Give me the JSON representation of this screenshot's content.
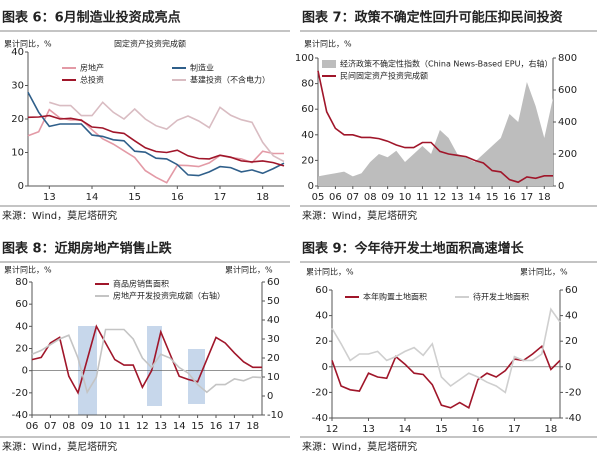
{
  "chart_data": [
    {
      "type": "line",
      "title": "图表 6：6月制造业投资成亮点",
      "subtitle": "固定资产投资完成额",
      "ylabel": "累计同比，%",
      "source": "来源：Wind，莫尼塔研究",
      "categories": [
        null,
        null,
        "13",
        null,
        null,
        null,
        "14",
        null,
        null,
        null,
        "15",
        null,
        null,
        null,
        "16",
        null,
        null,
        null,
        "17",
        null,
        null,
        null,
        "18",
        null,
        null
      ],
      "ylim": [
        0,
        40
      ],
      "yticks": [
        0,
        10,
        20,
        30,
        40
      ],
      "series": [
        {
          "name": "房地产",
          "color": "#e39aa6",
          "values": [
            15,
            16.2,
            22.8,
            20.3,
            19.7,
            19.8,
            16.8,
            14.1,
            12.5,
            10.5,
            8.5,
            4.6,
            2.6,
            1,
            6.2,
            6.1,
            5.8,
            6.9,
            9.1,
            8.5,
            8.1,
            7,
            10.4,
            9.7,
            9.7
          ]
        },
        {
          "name": "制造业",
          "color": "#2f5f8a",
          "values": [
            28,
            22,
            17.8,
            18.5,
            18.5,
            18.5,
            15.2,
            14.8,
            13.8,
            13.5,
            10.4,
            10.1,
            8.3,
            8.1,
            6.4,
            3.3,
            3.1,
            4.2,
            5.8,
            5.5,
            4.2,
            4.8,
            3.8,
            5.2,
            6.8
          ]
        },
        {
          "name": "总投资",
          "color": "#a0162a",
          "values": [
            20.5,
            20.6,
            21,
            20,
            20.2,
            19.6,
            17.6,
            17.3,
            16.1,
            15.7,
            13.5,
            11.4,
            10.3,
            10,
            10.7,
            9,
            8.2,
            8.1,
            9.2,
            8.6,
            7.5,
            7.2,
            7.5,
            7.0,
            6.0
          ]
        },
        {
          "name": "基建投资（不含电力）",
          "color": "#d9bcc2",
          "values": [
            null,
            null,
            25,
            24,
            24,
            21,
            21,
            25,
            22,
            20,
            23,
            20,
            18,
            17,
            19.6,
            20.9,
            19.4,
            17.4,
            23.5,
            21.1,
            19.8,
            19,
            13,
            9,
            7.3
          ]
        }
      ]
    },
    {
      "type": "line",
      "title": "图表 7：政策不确定性回升可能压抑民间投资",
      "ylabel": "累计同比，%",
      "source": "来源：Wind，莫尼塔研究",
      "categories": [
        "05",
        null,
        "06",
        null,
        "07",
        null,
        "08",
        null,
        "09",
        null,
        "10",
        null,
        "11",
        null,
        "12",
        null,
        "13",
        null,
        "14",
        null,
        "15",
        null,
        "16",
        null,
        "17",
        null,
        "18",
        null
      ],
      "ylim": [
        0,
        100
      ],
      "yticks": [
        0,
        20,
        40,
        60,
        80,
        100
      ],
      "y2lim": [
        0,
        800
      ],
      "y2ticks": [
        0,
        200,
        400,
        600,
        800
      ],
      "series": [
        {
          "name": "经济政策不确定性指数（China News-Based EPU，右轴）",
          "color": "#bdbdbd",
          "mark": "area",
          "axis": "y2",
          "values": [
            60,
            70,
            80,
            90,
            60,
            80,
            150,
            200,
            180,
            220,
            150,
            200,
            250,
            200,
            350,
            300,
            200,
            180,
            150,
            200,
            250,
            300,
            450,
            400,
            650,
            500,
            300,
            550
          ]
        },
        {
          "name": "民间固定资产投资完成额",
          "color": "#a0162a",
          "values": [
            90,
            58,
            45,
            40,
            40,
            38,
            38,
            37,
            35,
            32,
            30,
            30,
            34,
            34,
            27,
            25,
            24,
            23,
            20,
            18,
            12,
            11,
            5,
            3,
            7,
            6,
            8,
            8
          ]
        }
      ]
    },
    {
      "type": "line",
      "title": "图表 8：近期房地产销售止跌",
      "ylabel": "累计同比，%",
      "y2label": "累计同比，%",
      "source": "来源：Wind，莫尼塔研究",
      "categories": [
        "06",
        null,
        "07",
        null,
        "08",
        null,
        "09",
        null,
        "10",
        null,
        "11",
        null,
        "12",
        null,
        "13",
        null,
        "14",
        null,
        "15",
        null,
        "16",
        null,
        "17",
        null,
        "18",
        null
      ],
      "ylim": [
        -40,
        80
      ],
      "yticks": [
        -40,
        -20,
        0,
        20,
        40,
        60,
        80
      ],
      "y2lim": [
        -10,
        60
      ],
      "y2ticks": [
        -10,
        0,
        10,
        20,
        30,
        40,
        50,
        60
      ],
      "series": [
        {
          "name": "商品房销售面积",
          "color": "#a0162a",
          "values": [
            10,
            12,
            25,
            30,
            -5,
            -20,
            10,
            40,
            25,
            10,
            5,
            5,
            -15,
            0,
            35,
            15,
            -5,
            -8,
            -10,
            10,
            30,
            25,
            16,
            8,
            3,
            3
          ]
        },
        {
          "name": "房地产开发投资完成额（右轴）",
          "color": "#c4c4c4",
          "axis": "y2",
          "values": [
            22,
            24,
            27,
            30,
            32,
            20,
            2,
            10,
            35,
            35,
            35,
            30,
            20,
            15,
            22,
            20,
            15,
            12,
            6,
            2,
            6,
            6,
            9,
            8,
            10,
            9.7
          ]
        }
      ]
    },
    {
      "type": "line",
      "title": "图表 9：今年待开发土地面积高速增长",
      "ylabel": "累计同比，%",
      "y2label": "累计同比，%",
      "source": "来源：Wind，莫尼塔研究",
      "categories": [
        "12",
        null,
        null,
        null,
        "13",
        null,
        null,
        null,
        "14",
        null,
        null,
        null,
        "15",
        null,
        null,
        null,
        "16",
        null,
        null,
        null,
        "17",
        null,
        null,
        null,
        "18",
        null
      ],
      "ylim": [
        -40,
        60
      ],
      "yticks": [
        -40,
        -20,
        0,
        20,
        40,
        60
      ],
      "y2lim": [
        -40,
        60
      ],
      "y2ticks": [
        -40,
        -20,
        0,
        20,
        40,
        60
      ],
      "series": [
        {
          "name": "本年购置土地面积",
          "color": "#a0162a",
          "values": [
            5,
            -15,
            -18,
            -19,
            -5,
            -8,
            -9,
            8,
            2,
            -5,
            -6,
            -14,
            -30,
            -32,
            -28,
            -32,
            -10,
            -5,
            -8,
            -3,
            6,
            5,
            10,
            16,
            -2,
            5
          ]
        },
        {
          "name": "待开发土地面积",
          "color": "#cfcfcf",
          "axis": "y2",
          "values": [
            30,
            18,
            5,
            10,
            10,
            12,
            5,
            8,
            12,
            15,
            9,
            18,
            -8,
            -15,
            -10,
            -5,
            -8,
            -12,
            -15,
            -20,
            8,
            5,
            5,
            10,
            45,
            35
          ]
        }
      ]
    }
  ]
}
